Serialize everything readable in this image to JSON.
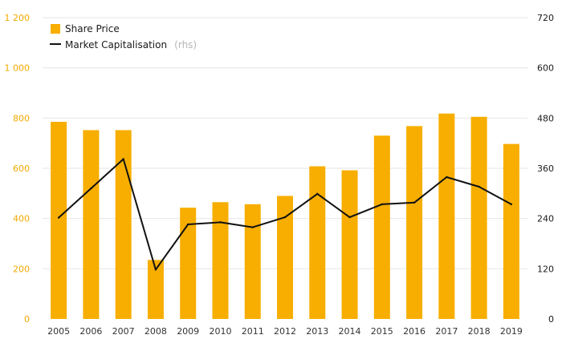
{
  "colors": {
    "bar": "#f7ae00",
    "line": "#111111",
    "left_axis": "#f2a900",
    "right_axis": "#1a1a1a",
    "grid": "#e6e6e6"
  },
  "legend": {
    "share_price_label": "Share Price",
    "market_cap_label": "Market Capitalisation",
    "market_cap_note": "(rhs)"
  },
  "chart_data": {
    "type": "bar",
    "categories": [
      "2005",
      "2006",
      "2007",
      "2008",
      "2009",
      "2010",
      "2011",
      "2012",
      "2013",
      "2014",
      "2015",
      "2016",
      "2017",
      "2018",
      "2019"
    ],
    "series": [
      {
        "name": "Share Price",
        "type": "bar",
        "axis": "left",
        "values": [
          785,
          752,
          752,
          235,
          443,
          465,
          457,
          490,
          608,
          592,
          730,
          768,
          818,
          805,
          697
        ]
      },
      {
        "name": "Market Capitalisation",
        "type": "line",
        "axis": "right",
        "values": [
          242,
          312,
          382,
          118,
          226,
          231,
          219,
          243,
          299,
          243,
          274,
          278,
          339,
          316,
          274
        ]
      }
    ],
    "y_left": {
      "range": [
        0,
        1200
      ],
      "ticks": [
        0,
        200,
        400,
        600,
        800,
        1000,
        1200
      ],
      "tick_labels": [
        "0",
        "200",
        "400",
        "600",
        "800",
        "1 000",
        "1 200"
      ]
    },
    "y_right": {
      "range": [
        0,
        720
      ],
      "ticks": [
        0,
        120,
        240,
        360,
        480,
        600,
        720
      ],
      "tick_labels": [
        "0",
        "120",
        "240",
        "360",
        "480",
        "600",
        "720"
      ]
    },
    "grid": true,
    "legend_position": "top-left"
  }
}
